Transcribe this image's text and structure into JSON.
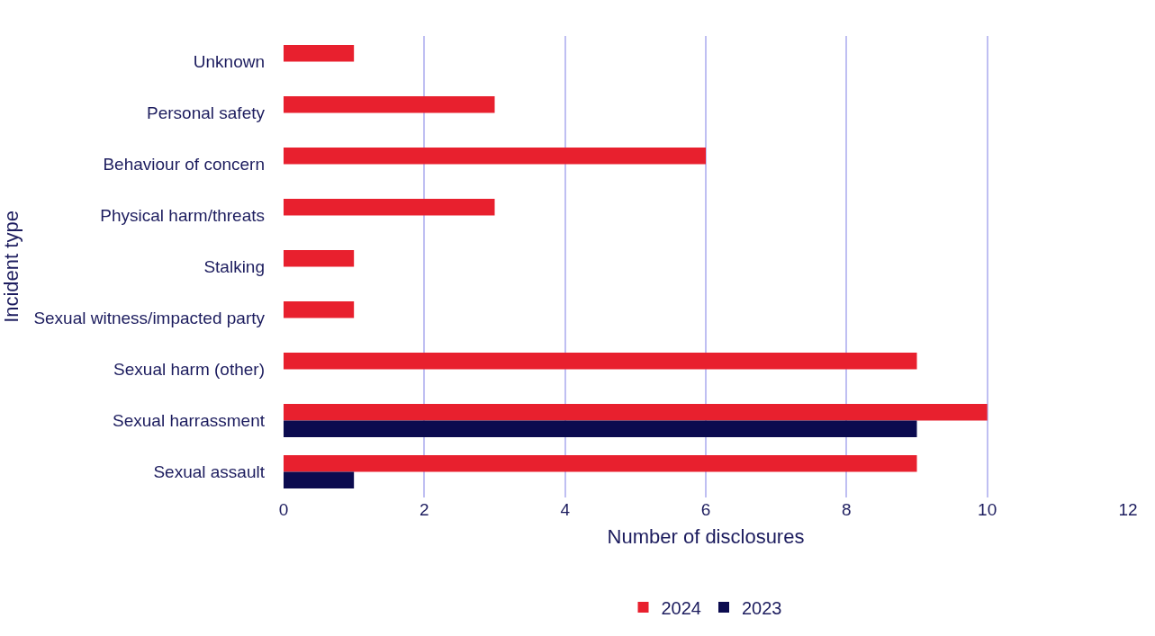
{
  "chart_data": {
    "type": "bar",
    "orientation": "horizontal",
    "xlabel": "Number of disclosures",
    "ylabel": "Incident type",
    "categories": [
      "Unknown",
      "Personal safety",
      "Behaviour of concern",
      "Physical harm/threats",
      "Stalking",
      "Sexual witness/impacted party",
      "Sexual harm (other)",
      "Sexual harrassment",
      "Sexual assault"
    ],
    "series": [
      {
        "name": "2024",
        "color": "#e8202e",
        "values": [
          1,
          3,
          6,
          3,
          1,
          1,
          9,
          10,
          9
        ]
      },
      {
        "name": "2023",
        "color": "#0b0b4f",
        "values": [
          null,
          null,
          null,
          null,
          null,
          null,
          null,
          9,
          1
        ]
      }
    ],
    "xlim": [
      0,
      12
    ],
    "xticks": [
      0,
      2,
      4,
      6,
      8,
      10,
      12
    ],
    "grid": "x",
    "legend": "bottom"
  }
}
